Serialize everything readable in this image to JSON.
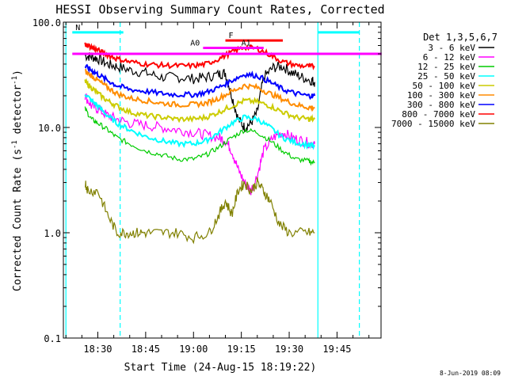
{
  "chart_data": {
    "type": "line",
    "title": "HESSI Observing Summary Count Rates, Corrected",
    "xlabel": "Start Time (24-Aug-15 18:19:22)",
    "ylabel_parts": [
      "Corrected Count Rate (s",
      "-1",
      " detector",
      "-1",
      ")"
    ],
    "yscale": "log",
    "ylim": [
      0.1,
      100.0
    ],
    "y_ticks": [
      {
        "value": 0.1,
        "label": "0.1"
      },
      {
        "value": 1.0,
        "label": "1.0"
      },
      {
        "value": 10.0,
        "label": "10.0"
      },
      {
        "value": 100.0,
        "label": "100.0"
      }
    ],
    "xlim_minutes": [
      18.32,
      19.98
    ],
    "x_ticks": [
      {
        "minute": 18.5,
        "label": "18:30"
      },
      {
        "minute": 18.75,
        "label": "18:45"
      },
      {
        "minute": 19.0,
        "label": "19:00"
      },
      {
        "minute": 19.25,
        "label": "19:15"
      },
      {
        "minute": 19.5,
        "label": "19:30"
      },
      {
        "minute": 19.75,
        "label": "19:45"
      }
    ],
    "legend_title": "Det 1,3,5,6,7",
    "legend_position": "right",
    "series": [
      {
        "name": "3 - 6 keV",
        "color": "#000000",
        "t": [
          "18:26",
          "18:28",
          "18:30",
          "18:33",
          "18:36",
          "18:40",
          "18:45",
          "18:50",
          "18:55",
          "19:00",
          "19:04",
          "19:08",
          "19:10",
          "19:12",
          "19:14",
          "19:16",
          "19:18",
          "19:20",
          "19:22",
          "19:25",
          "19:28",
          "19:31",
          "19:34",
          "19:37",
          "19:38"
        ],
        "y": [
          48,
          47,
          45,
          40,
          38,
          35,
          33,
          30,
          30,
          29,
          30,
          32,
          33,
          20,
          12,
          10,
          11,
          14,
          30,
          37,
          38,
          33,
          30,
          28,
          27
        ]
      },
      {
        "name": "6 - 12 keV",
        "color": "#ff00ff",
        "t": [
          "18:26",
          "18:28",
          "18:30",
          "18:33",
          "18:36",
          "18:40",
          "18:45",
          "18:50",
          "18:55",
          "19:00",
          "19:04",
          "19:08",
          "19:10",
          "19:12",
          "19:14",
          "19:16",
          "19:18",
          "19:20",
          "19:22",
          "19:25",
          "19:28",
          "19:31",
          "19:34",
          "19:37",
          "19:38"
        ],
        "y": [
          20,
          16,
          15,
          13,
          12,
          11,
          10.5,
          10,
          9.5,
          9,
          8.5,
          8,
          7.5,
          6,
          4,
          3,
          2.5,
          3.5,
          6,
          8,
          9,
          8,
          7.5,
          7,
          7
        ]
      },
      {
        "name": "12 - 25 keV",
        "color": "#00cc00",
        "t": [
          "18:26",
          "18:28",
          "18:30",
          "18:33",
          "18:36",
          "18:40",
          "18:45",
          "18:50",
          "18:55",
          "19:00",
          "19:04",
          "19:08",
          "19:12",
          "19:16",
          "19:20",
          "19:24",
          "19:28",
          "19:32",
          "19:36",
          "19:38"
        ],
        "y": [
          15,
          12,
          11,
          9.5,
          8,
          7,
          6,
          5.5,
          5,
          5,
          5.5,
          6.5,
          8,
          9.5,
          9,
          7.5,
          6,
          5,
          4.8,
          4.6
        ]
      },
      {
        "name": "25 - 50 keV",
        "color": "#00ffff",
        "t": [
          "18:26",
          "18:28",
          "18:30",
          "18:33",
          "18:36",
          "18:40",
          "18:45",
          "18:50",
          "18:55",
          "19:00",
          "19:04",
          "19:08",
          "19:12",
          "19:16",
          "19:20",
          "19:24",
          "19:28",
          "19:32",
          "19:36",
          "19:38"
        ],
        "y": [
          21,
          18,
          16,
          13,
          11,
          9.5,
          8.2,
          7.5,
          7,
          7,
          7.5,
          9,
          11,
          12.5,
          12,
          10,
          8,
          7.2,
          6.8,
          6.6
        ]
      },
      {
        "name": "50 - 100 keV",
        "color": "#cccc00",
        "t": [
          "18:26",
          "18:28",
          "18:30",
          "18:33",
          "18:36",
          "18:40",
          "18:45",
          "18:50",
          "18:55",
          "19:00",
          "19:04",
          "19:08",
          "19:12",
          "19:16",
          "19:20",
          "19:24",
          "19:28",
          "19:32",
          "19:36",
          "19:38"
        ],
        "y": [
          27,
          24,
          21,
          18,
          16,
          14,
          13,
          12.5,
          12,
          12,
          12.5,
          14,
          16,
          18,
          17.5,
          16,
          14,
          12.5,
          12,
          12
        ]
      },
      {
        "name": "100 - 300 keV",
        "color": "#ff8c00",
        "t": [
          "18:26",
          "18:28",
          "18:30",
          "18:33",
          "18:36",
          "18:40",
          "18:45",
          "18:50",
          "18:55",
          "19:00",
          "19:04",
          "19:08",
          "19:12",
          "19:16",
          "19:20",
          "19:24",
          "19:28",
          "19:32",
          "19:36",
          "19:38"
        ],
        "y": [
          34,
          31,
          28,
          24,
          21,
          19,
          18,
          17,
          16.5,
          16.5,
          17,
          19,
          22,
          25,
          24,
          21,
          18.5,
          16.5,
          15.5,
          15.5
        ]
      },
      {
        "name": "300 - 800 keV",
        "color": "#0000ff",
        "t": [
          "18:26",
          "18:28",
          "18:30",
          "18:33",
          "18:36",
          "18:40",
          "18:45",
          "18:50",
          "18:55",
          "19:00",
          "19:04",
          "19:08",
          "19:12",
          "19:16",
          "19:20",
          "19:24",
          "19:28",
          "19:32",
          "19:36",
          "19:38"
        ],
        "y": [
          38,
          35,
          32,
          28,
          25,
          23,
          22,
          21,
          20.5,
          20.5,
          21.5,
          24,
          28,
          32,
          31,
          27,
          23,
          21,
          20,
          20
        ]
      },
      {
        "name": "800 - 7000 keV",
        "color": "#ff0000",
        "t": [
          "18:26",
          "18:28",
          "18:30",
          "18:33",
          "18:36",
          "18:40",
          "18:45",
          "18:50",
          "18:55",
          "19:00",
          "19:04",
          "19:08",
          "19:12",
          "19:16",
          "19:20",
          "19:24",
          "19:28",
          "19:32",
          "19:36",
          "19:38"
        ],
        "y": [
          62,
          58,
          54,
          49,
          45,
          42,
          40,
          39,
          38.5,
          38.5,
          40,
          45,
          52,
          58,
          56,
          49,
          42,
          39,
          38,
          38
        ]
      },
      {
        "name": "7000 - 15000 keV",
        "color": "#808000",
        "t": [
          "18:26",
          "18:27",
          "18:30",
          "18:33",
          "18:36",
          "18:39",
          "18:42",
          "18:45",
          "18:50",
          "18:55",
          "19:00",
          "19:05",
          "19:08",
          "19:10",
          "19:12",
          "19:14",
          "19:16",
          "19:18",
          "19:20",
          "19:22",
          "19:24",
          "19:27",
          "19:30",
          "19:35",
          "19:38"
        ],
        "y": [
          3,
          2.5,
          2.5,
          1.5,
          1.0,
          1.0,
          1.0,
          1.0,
          1.0,
          1.0,
          0.9,
          1.0,
          1.5,
          2,
          1.5,
          2.5,
          3,
          2.5,
          3,
          2.5,
          2,
          1.2,
          1.0,
          1.0,
          1.0
        ]
      }
    ],
    "annotations": [
      {
        "label": "N",
        "color": "#00ffff",
        "t_start": "18:22",
        "t_end": "18:38",
        "y": 80
      },
      {
        "label": "F",
        "color": "#ff0000",
        "t_start": "19:10",
        "t_end": "19:28",
        "y": 67
      },
      {
        "label": "A0",
        "color": "#ff00ff",
        "t_start": "19:03",
        "t_end": "19:14",
        "y": 57
      },
      {
        "label": "A1",
        "color": "#ff00ff",
        "t_start": "19:14",
        "t_end": "19:22",
        "y": 57
      },
      {
        "label": "",
        "color": "#ff00ff",
        "t_start": "18:22",
        "t_end": "19:59",
        "y": 50
      },
      {
        "label": "",
        "color": "#00ffff",
        "t_start": "19:39",
        "t_end": "19:52",
        "y": 80
      }
    ],
    "vertical_lines": [
      {
        "t": "18:20",
        "color": "#00ffff",
        "style": "solid"
      },
      {
        "t": "18:37",
        "color": "#00ffff",
        "style": "dashed"
      },
      {
        "t": "19:39",
        "color": "#00ffff",
        "style": "solid"
      },
      {
        "t": "19:52",
        "color": "#00ffff",
        "style": "dashed"
      }
    ],
    "footer_date": "8-Jun-2019 08:09"
  }
}
